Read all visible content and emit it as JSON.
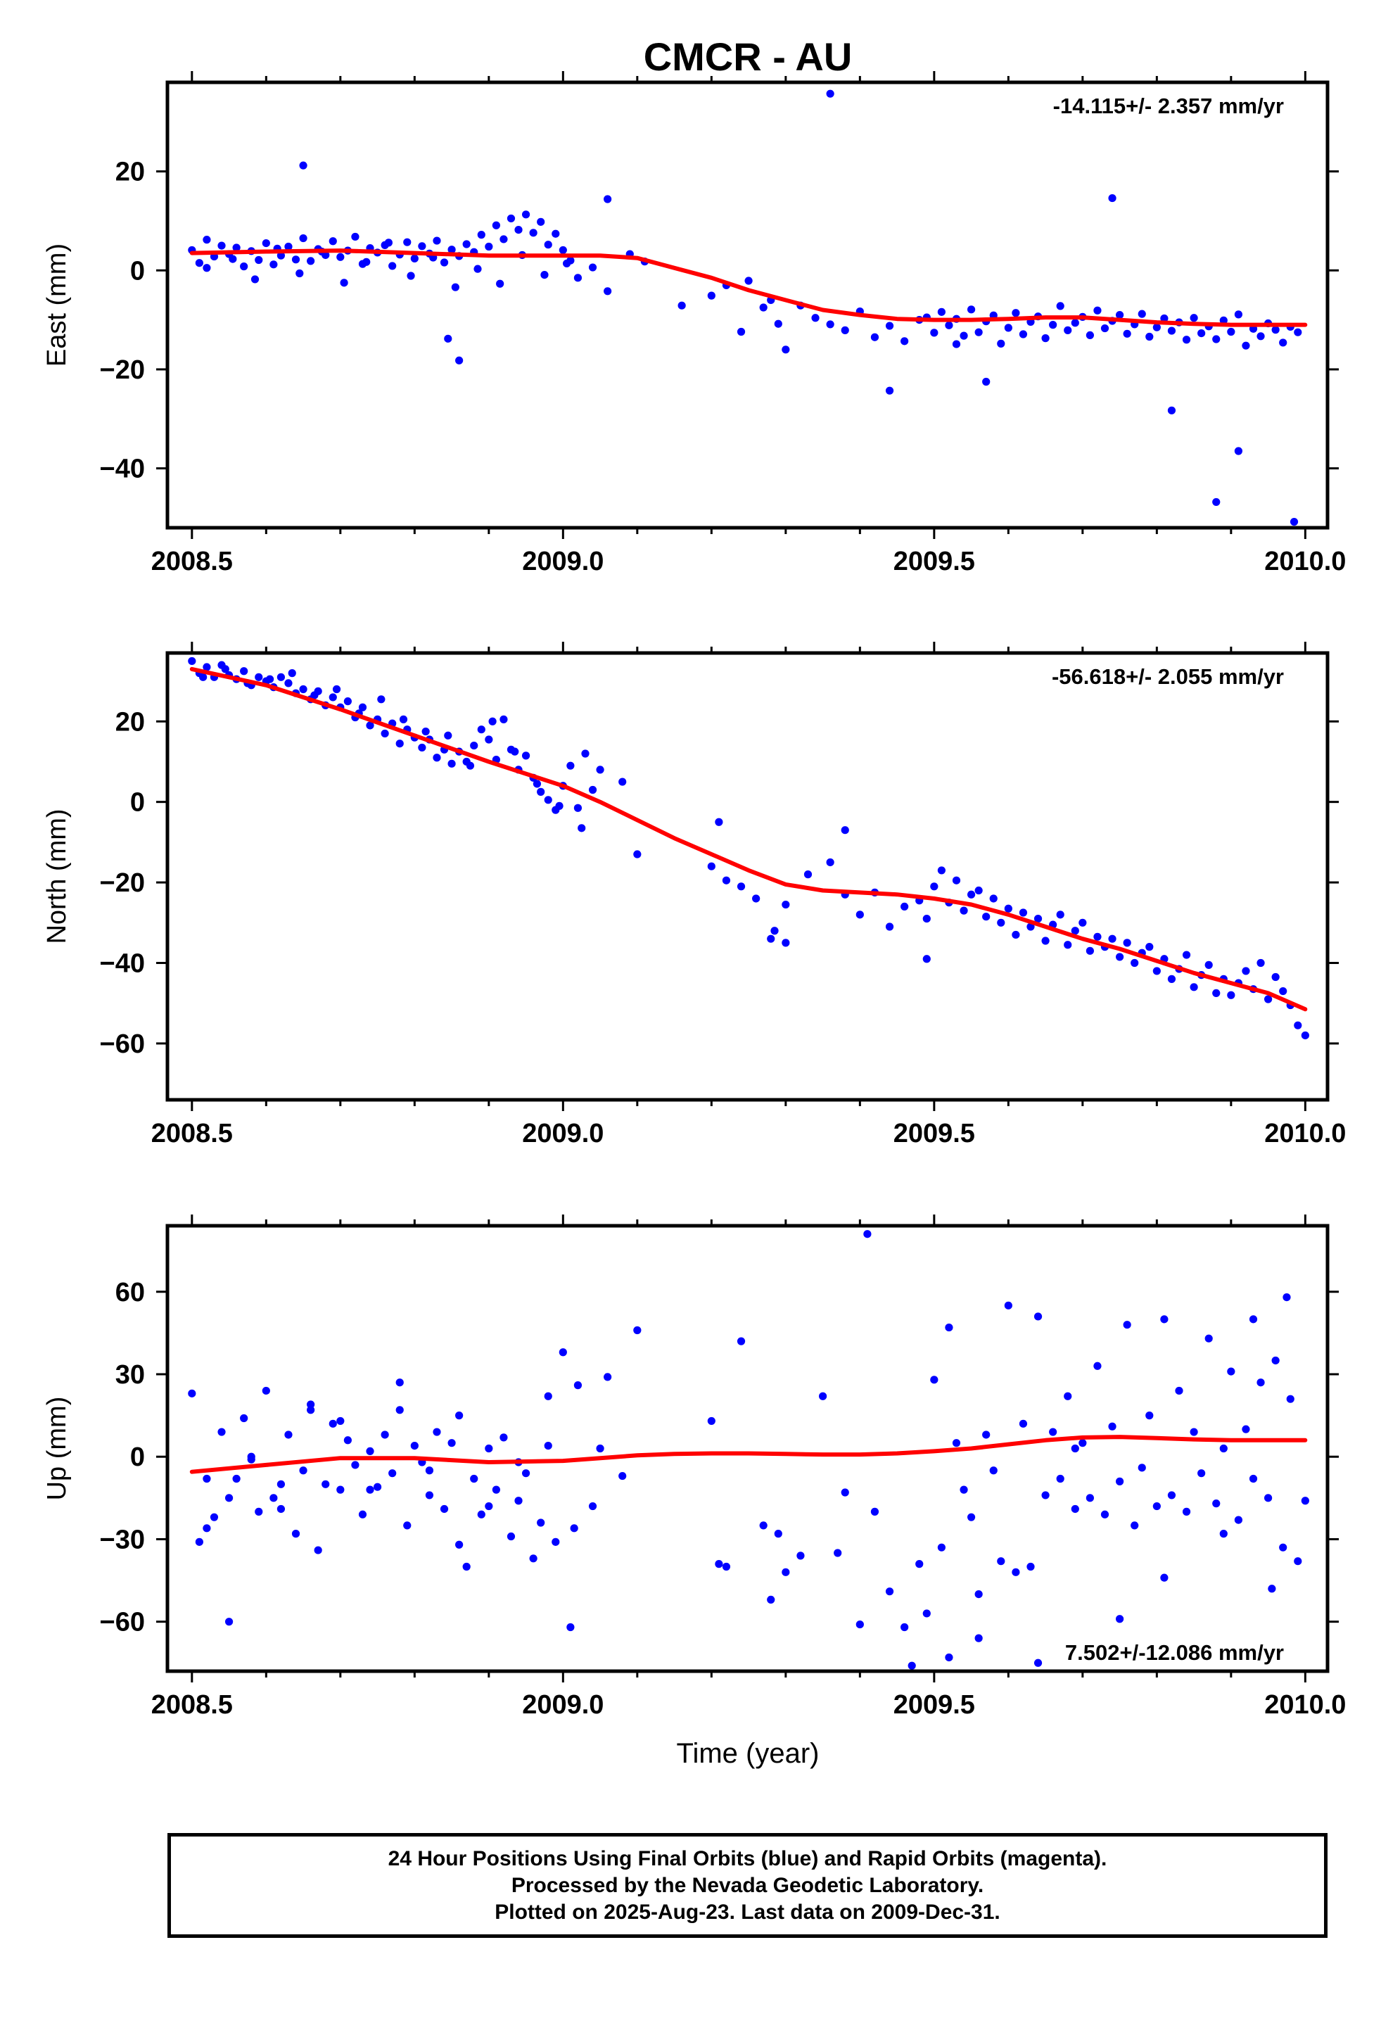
{
  "title": "CMCR - AU",
  "xlabel": "Time (year)",
  "footer": {
    "line1": "24 Hour Positions Using Final Orbits (blue) and Rapid Orbits (magenta).",
    "line2": "Processed by the Nevada Geodetic Laboratory.",
    "line3": "Plotted on 2025-Aug-23. Last data on 2009-Dec-31."
  },
  "colors": {
    "points": "#0000ff",
    "fit": "#ff0000"
  },
  "chart_data": [
    {
      "type": "scatter",
      "ylabel": "East (mm)",
      "rate": "-14.115+/- 2.357 mm/yr",
      "rate_position": "top-right",
      "xlim": [
        2008.467,
        2010.03
      ],
      "ylim": [
        -52,
        38
      ],
      "xticks": [
        "2008.5",
        "2009.0",
        "2009.5",
        "2010.0"
      ],
      "yticks": [
        "20",
        "0",
        "−20",
        "−40"
      ],
      "ytick_values": [
        20,
        0,
        -20,
        -40
      ],
      "grid": false,
      "points_x": [
        2008.5,
        2008.51,
        2008.52,
        2008.53,
        2008.54,
        2008.55,
        2008.56,
        2008.57,
        2008.58,
        2008.59,
        2008.6,
        2008.61,
        2008.62,
        2008.63,
        2008.64,
        2008.65,
        2008.66,
        2008.67,
        2008.68,
        2008.69,
        2008.7,
        2008.71,
        2008.72,
        2008.73,
        2008.74,
        2008.75,
        2008.76,
        2008.77,
        2008.78,
        2008.79,
        2008.8,
        2008.81,
        2008.82,
        2008.83,
        2008.84,
        2008.85,
        2008.86,
        2008.87,
        2008.88,
        2008.89,
        2008.9,
        2008.91,
        2008.92,
        2008.93,
        2008.94,
        2008.95,
        2008.96,
        2008.97,
        2008.98,
        2008.99,
        2009.0,
        2009.01,
        2009.02,
        2009.04,
        2009.06,
        2009.09,
        2009.11,
        2009.2,
        2009.22,
        2009.24,
        2009.25,
        2009.27,
        2009.29,
        2009.3,
        2009.32,
        2009.34,
        2009.36,
        2009.38,
        2009.4,
        2009.42,
        2009.44,
        2009.46,
        2009.48,
        2009.49,
        2009.5,
        2009.51,
        2009.52,
        2009.53,
        2009.54,
        2009.55,
        2009.56,
        2009.57,
        2009.58,
        2009.59,
        2009.6,
        2009.61,
        2009.62,
        2009.63,
        2009.64,
        2009.65,
        2009.66,
        2009.67,
        2009.68,
        2009.69,
        2009.7,
        2009.71,
        2009.72,
        2009.73,
        2009.74,
        2009.75,
        2009.76,
        2009.77,
        2009.78,
        2009.79,
        2009.8,
        2009.81,
        2009.82,
        2009.83,
        2009.84,
        2009.85,
        2009.86,
        2009.87,
        2009.88,
        2009.89,
        2009.9,
        2009.91,
        2009.92,
        2009.93,
        2009.94,
        2009.95,
        2009.96,
        2009.97,
        2009.98,
        2009.99,
        2008.52,
        2008.555,
        2008.585,
        2008.615,
        2008.645,
        2008.675,
        2008.705,
        2008.735,
        2008.765,
        2008.795,
        2008.825,
        2008.855,
        2008.885,
        2008.915,
        2008.945,
        2008.975,
        2009.005,
        2008.65,
        2008.86,
        2009.36,
        2009.74,
        2009.88,
        2009.91,
        2009.985,
        2009.82,
        2009.57,
        2009.53,
        2009.44,
        2009.28,
        2009.16,
        2009.06,
        2008.845
      ],
      "points_y": [
        4.1,
        1.5,
        6.2,
        2.8,
        5.0,
        3.3,
        4.6,
        0.8,
        3.9,
        2.1,
        5.5,
        1.2,
        3.0,
        4.8,
        2.2,
        6.5,
        1.9,
        4.3,
        3.1,
        5.9,
        2.7,
        4.0,
        6.8,
        1.3,
        4.5,
        3.6,
        5.1,
        0.9,
        3.2,
        5.7,
        2.4,
        4.9,
        3.4,
        6.0,
        1.6,
        4.2,
        2.9,
        5.3,
        3.7,
        7.2,
        4.8,
        9.1,
        6.3,
        10.5,
        8.2,
        11.3,
        7.6,
        9.8,
        5.2,
        7.4,
        4.1,
        2.0,
        -1.5,
        0.6,
        -4.2,
        3.3,
        1.8,
        -5.1,
        -3.0,
        -12.4,
        -2.1,
        -7.5,
        -10.8,
        -16.0,
        -7.1,
        -9.6,
        -10.9,
        -12.1,
        -8.3,
        -13.5,
        -11.2,
        -14.3,
        -10.0,
        -9.5,
        -12.6,
        -8.4,
        -11.1,
        -9.8,
        -13.2,
        -7.9,
        -12.5,
        -10.3,
        -9.1,
        -14.8,
        -11.6,
        -8.6,
        -12.9,
        -10.4,
        -9.3,
        -13.7,
        -11.0,
        -7.2,
        -12.1,
        -10.6,
        -9.4,
        -13.1,
        -8.1,
        -11.7,
        -10.2,
        -9.0,
        -12.8,
        -10.9,
        -8.8,
        -13.4,
        -11.5,
        -9.7,
        -12.2,
        -10.5,
        -14.0,
        -9.6,
        -12.7,
        -11.3,
        -13.9,
        -10.1,
        -12.4,
        -8.9,
        -15.2,
        -11.8,
        -13.3,
        -10.7,
        -12.0,
        -14.6,
        -11.4,
        -12.5,
        0.5,
        2.3,
        -1.8,
        4.4,
        -0.6,
        3.8,
        -2.5,
        1.7,
        5.6,
        -1.1,
        2.6,
        -3.4,
        0.3,
        -2.7,
        3.1,
        -0.9,
        1.4,
        21.2,
        -18.2,
        35.7,
        14.6,
        -46.8,
        -36.5,
        -50.8,
        -28.3,
        -22.5,
        -14.9,
        -24.3,
        -6.0,
        -7.1,
        14.4,
        -13.8
      ],
      "fit_x": [
        2008.5,
        2008.6,
        2008.7,
        2008.8,
        2008.9,
        2009.0,
        2009.05,
        2009.1,
        2009.15,
        2009.2,
        2009.25,
        2009.3,
        2009.35,
        2009.4,
        2009.45,
        2009.5,
        2009.55,
        2009.6,
        2009.65,
        2009.7,
        2009.75,
        2009.8,
        2009.85,
        2009.9,
        2009.95,
        2010.0
      ],
      "fit_y": [
        3.5,
        3.8,
        4.0,
        3.5,
        3.0,
        3.0,
        3.0,
        2.5,
        0.5,
        -1.5,
        -4.0,
        -6.0,
        -8.0,
        -9.0,
        -9.8,
        -10.0,
        -10.0,
        -9.8,
        -9.5,
        -9.5,
        -10.0,
        -10.5,
        -10.8,
        -11.0,
        -11.0,
        -11.0
      ]
    },
    {
      "type": "scatter",
      "ylabel": "North (mm)",
      "rate": "-56.618+/- 2.055 mm/yr",
      "rate_position": "top-right",
      "xlim": [
        2008.467,
        2010.03
      ],
      "ylim": [
        -74,
        37
      ],
      "xticks": [
        "2008.5",
        "2009.0",
        "2009.5",
        "2010.0"
      ],
      "yticks": [
        "20",
        "0",
        "−20",
        "−40",
        "−60"
      ],
      "ytick_values": [
        20,
        0,
        -20,
        -40,
        -60
      ],
      "grid": false,
      "points_x": [
        2008.5,
        2008.51,
        2008.52,
        2008.53,
        2008.54,
        2008.55,
        2008.56,
        2008.57,
        2008.58,
        2008.59,
        2008.6,
        2008.61,
        2008.62,
        2008.63,
        2008.64,
        2008.65,
        2008.66,
        2008.67,
        2008.68,
        2008.69,
        2008.7,
        2008.71,
        2008.72,
        2008.73,
        2008.74,
        2008.75,
        2008.76,
        2008.77,
        2008.78,
        2008.79,
        2008.8,
        2008.81,
        2008.82,
        2008.83,
        2008.84,
        2008.85,
        2008.86,
        2008.87,
        2008.88,
        2008.89,
        2008.9,
        2008.91,
        2008.92,
        2008.93,
        2008.94,
        2008.95,
        2008.96,
        2008.97,
        2008.98,
        2008.99,
        2009.0,
        2009.01,
        2009.02,
        2009.03,
        2009.04,
        2009.05,
        2009.08,
        2009.1,
        2009.2,
        2009.22,
        2009.24,
        2009.26,
        2009.28,
        2009.3,
        2009.33,
        2009.36,
        2009.38,
        2009.4,
        2009.42,
        2009.44,
        2009.46,
        2009.48,
        2009.49,
        2009.5,
        2009.51,
        2009.52,
        2009.53,
        2009.54,
        2009.55,
        2009.56,
        2009.57,
        2009.58,
        2009.59,
        2009.6,
        2009.61,
        2009.62,
        2009.63,
        2009.64,
        2009.65,
        2009.66,
        2009.67,
        2009.68,
        2009.69,
        2009.7,
        2009.71,
        2009.72,
        2009.73,
        2009.74,
        2009.75,
        2009.76,
        2009.77,
        2009.78,
        2009.79,
        2009.8,
        2009.81,
        2009.82,
        2009.83,
        2009.84,
        2009.85,
        2009.86,
        2009.87,
        2009.88,
        2009.89,
        2009.9,
        2009.91,
        2009.92,
        2009.93,
        2009.94,
        2009.95,
        2009.96,
        2009.97,
        2009.98,
        2009.99,
        2010.0,
        2008.515,
        2008.545,
        2008.575,
        2008.605,
        2008.635,
        2008.665,
        2008.695,
        2008.725,
        2008.755,
        2008.785,
        2008.815,
        2008.845,
        2008.875,
        2008.905,
        2008.935,
        2008.965,
        2008.995,
        2009.025,
        2009.285,
        2009.3,
        2009.49,
        2009.21,
        2009.38
      ],
      "points_y": [
        35.0,
        32.0,
        33.5,
        31.0,
        34.0,
        31.5,
        30.5,
        32.5,
        29.0,
        31.0,
        30.0,
        28.5,
        31.0,
        29.5,
        27.0,
        28.0,
        25.5,
        27.5,
        24.0,
        26.0,
        23.5,
        25.0,
        21.0,
        23.5,
        19.0,
        20.5,
        17.0,
        19.5,
        14.5,
        18.0,
        16.0,
        13.5,
        15.5,
        11.0,
        13.0,
        9.5,
        12.5,
        10.0,
        14.0,
        18.0,
        15.5,
        10.5,
        20.5,
        13.0,
        8.0,
        11.5,
        6.0,
        2.5,
        0.5,
        -2.0,
        4.0,
        9.0,
        -1.5,
        12.0,
        3.0,
        8.0,
        5.0,
        -13.0,
        -16.0,
        -19.5,
        -21.0,
        -24.0,
        -34.0,
        -25.5,
        -18.0,
        -15.0,
        -23.0,
        -28.0,
        -22.5,
        -31.0,
        -26.0,
        -24.5,
        -29.0,
        -21.0,
        -17.0,
        -25.0,
        -19.5,
        -27.0,
        -23.0,
        -22.0,
        -28.5,
        -24.0,
        -30.0,
        -26.5,
        -33.0,
        -27.5,
        -31.0,
        -29.0,
        -34.5,
        -30.5,
        -28.0,
        -35.5,
        -32.0,
        -30.0,
        -37.0,
        -33.5,
        -36.0,
        -34.0,
        -38.5,
        -35.0,
        -40.0,
        -37.5,
        -36.0,
        -42.0,
        -39.0,
        -44.0,
        -41.5,
        -38.0,
        -46.0,
        -43.0,
        -40.5,
        -47.5,
        -44.0,
        -48.0,
        -45.0,
        -42.0,
        -46.5,
        -40.0,
        -49.0,
        -43.5,
        -47.0,
        -50.5,
        -55.5,
        -58.0,
        31.0,
        33.0,
        29.5,
        30.5,
        32.0,
        26.5,
        28.0,
        22.0,
        25.5,
        20.5,
        17.5,
        16.5,
        9.0,
        20.0,
        12.5,
        4.5,
        -1.0,
        -6.5,
        -32.0,
        -35.0,
        -39.0,
        -5.0,
        -7.0
      ],
      "fit_x": [
        2008.5,
        2008.6,
        2008.7,
        2008.8,
        2008.9,
        2009.0,
        2009.05,
        2009.1,
        2009.15,
        2009.2,
        2009.25,
        2009.3,
        2009.35,
        2009.4,
        2009.45,
        2009.5,
        2009.55,
        2009.6,
        2009.65,
        2009.7,
        2009.75,
        2009.8,
        2009.85,
        2009.9,
        2009.95,
        2010.0
      ],
      "fit_y": [
        33.0,
        29.0,
        23.0,
        16.5,
        10.0,
        4.0,
        0.0,
        -4.5,
        -9.0,
        -13.0,
        -17.0,
        -20.5,
        -22.0,
        -22.5,
        -23.0,
        -24.0,
        -25.5,
        -28.0,
        -31.0,
        -34.0,
        -36.5,
        -39.5,
        -42.5,
        -45.0,
        -47.5,
        -51.5
      ]
    },
    {
      "type": "scatter",
      "ylabel": "Up (mm)",
      "rate": "7.502+/-12.086 mm/yr",
      "rate_position": "bottom-right",
      "xlim": [
        2008.467,
        2010.03
      ],
      "ylim": [
        -78,
        84
      ],
      "xticks": [
        "2008.5",
        "2009.0",
        "2009.5",
        "2010.0"
      ],
      "yticks": [
        "60",
        "30",
        "0",
        "−30",
        "−60"
      ],
      "ytick_values": [
        60,
        30,
        0,
        -30,
        -60
      ],
      "grid": false,
      "points_x": [
        2008.5,
        2008.51,
        2008.52,
        2008.53,
        2008.54,
        2008.55,
        2008.56,
        2008.57,
        2008.58,
        2008.59,
        2008.6,
        2008.61,
        2008.62,
        2008.63,
        2008.64,
        2008.65,
        2008.66,
        2008.67,
        2008.68,
        2008.69,
        2008.7,
        2008.71,
        2008.72,
        2008.73,
        2008.74,
        2008.75,
        2008.76,
        2008.77,
        2008.78,
        2008.79,
        2008.8,
        2008.81,
        2008.82,
        2008.83,
        2008.84,
        2008.85,
        2008.86,
        2008.87,
        2008.88,
        2008.89,
        2008.9,
        2008.91,
        2008.92,
        2008.93,
        2008.94,
        2008.95,
        2008.96,
        2008.97,
        2008.98,
        2008.99,
        2009.0,
        2009.01,
        2009.02,
        2009.04,
        2009.06,
        2009.08,
        2009.1,
        2009.2,
        2009.22,
        2009.24,
        2009.27,
        2009.28,
        2009.3,
        2009.32,
        2009.35,
        2009.37,
        2009.4,
        2009.42,
        2009.44,
        2009.46,
        2009.48,
        2009.49,
        2009.5,
        2009.51,
        2009.52,
        2009.53,
        2009.54,
        2009.55,
        2009.56,
        2009.57,
        2009.58,
        2009.59,
        2009.6,
        2009.61,
        2009.62,
        2009.63,
        2009.64,
        2009.65,
        2009.66,
        2009.67,
        2009.68,
        2009.69,
        2009.7,
        2009.71,
        2009.72,
        2009.73,
        2009.74,
        2009.75,
        2009.76,
        2009.77,
        2009.78,
        2009.79,
        2009.8,
        2009.81,
        2009.82,
        2009.83,
        2009.84,
        2009.85,
        2009.86,
        2009.87,
        2009.88,
        2009.89,
        2009.9,
        2009.91,
        2009.92,
        2009.93,
        2009.94,
        2009.95,
        2009.96,
        2009.97,
        2009.98,
        2009.99,
        2010.0,
        2008.52,
        2008.55,
        2008.58,
        2008.62,
        2008.66,
        2008.7,
        2008.74,
        2008.78,
        2008.82,
        2008.86,
        2008.9,
        2008.94,
        2008.98,
        2009.015,
        2009.05,
        2009.21,
        2009.29,
        2009.38,
        2009.41,
        2009.47,
        2009.52,
        2009.56,
        2009.64,
        2009.69,
        2009.75,
        2009.81,
        2009.89,
        2009.93,
        2009.955,
        2009.975
      ],
      "points_y": [
        23.0,
        -31.0,
        -8.0,
        -22.0,
        9.0,
        -15.0,
        -8.0,
        14.0,
        -1.0,
        -20.0,
        24.0,
        -15.0,
        -19.0,
        8.0,
        -28.0,
        -5.0,
        19.0,
        -34.0,
        -10.0,
        12.0,
        -12.0,
        6.0,
        -3.0,
        -21.0,
        2.0,
        -11.0,
        8.0,
        -6.0,
        17.0,
        -25.0,
        4.0,
        -2.0,
        -14.0,
        9.0,
        -19.0,
        5.0,
        -32.0,
        -40.0,
        -8.0,
        -21.0,
        3.0,
        -12.0,
        7.0,
        -29.0,
        -16.0,
        -6.0,
        -37.0,
        -24.0,
        4.0,
        -31.0,
        38.0,
        -62.0,
        26.0,
        -18.0,
        29.0,
        -7.0,
        46.0,
        13.0,
        -40.0,
        42.0,
        -25.0,
        -52.0,
        -42.0,
        -36.0,
        22.0,
        -35.0,
        -61.0,
        -20.0,
        -49.0,
        -62.0,
        -39.0,
        -57.0,
        28.0,
        -33.0,
        47.0,
        5.0,
        -12.0,
        -22.0,
        -50.0,
        8.0,
        -5.0,
        -38.0,
        55.0,
        -42.0,
        12.0,
        -40.0,
        51.0,
        -14.0,
        9.0,
        -8.0,
        22.0,
        -19.0,
        5.0,
        -15.0,
        33.0,
        -21.0,
        11.0,
        -9.0,
        48.0,
        -25.0,
        -4.0,
        15.0,
        -18.0,
        50.0,
        -14.0,
        24.0,
        -20.0,
        9.0,
        -6.0,
        43.0,
        -17.0,
        3.0,
        31.0,
        -23.0,
        10.0,
        -8.0,
        27.0,
        -15.0,
        35.0,
        -33.0,
        21.0,
        -38.0,
        -16.0,
        -26.0,
        -60.0,
        0.0,
        -10.0,
        17.0,
        13.0,
        -12.0,
        27.0,
        -5.0,
        15.0,
        -18.0,
        -2.0,
        22.0,
        -26.0,
        3.0,
        -39.0,
        -28.0,
        -13.0,
        81.0,
        -76.0,
        -73.0,
        -66.0,
        -75.0,
        3.0,
        -59.0,
        -44.0,
        -28.0,
        50.0,
        -48.0,
        58.0,
        39.0,
        -45.0,
        -40.0
      ],
      "fit_x": [
        2008.5,
        2008.6,
        2008.7,
        2008.8,
        2008.9,
        2009.0,
        2009.05,
        2009.1,
        2009.15,
        2009.2,
        2009.25,
        2009.3,
        2009.35,
        2009.4,
        2009.45,
        2009.5,
        2009.55,
        2009.6,
        2009.65,
        2009.7,
        2009.75,
        2009.8,
        2009.85,
        2009.9,
        2009.95,
        2010.0
      ],
      "fit_y": [
        -5.5,
        -3.0,
        -0.5,
        -0.5,
        -2.0,
        -1.5,
        -0.5,
        0.5,
        1.0,
        1.2,
        1.2,
        1.0,
        0.8,
        0.8,
        1.2,
        2.0,
        3.0,
        4.5,
        6.0,
        7.0,
        7.2,
        6.8,
        6.3,
        6.0,
        6.0,
        6.0
      ]
    }
  ]
}
